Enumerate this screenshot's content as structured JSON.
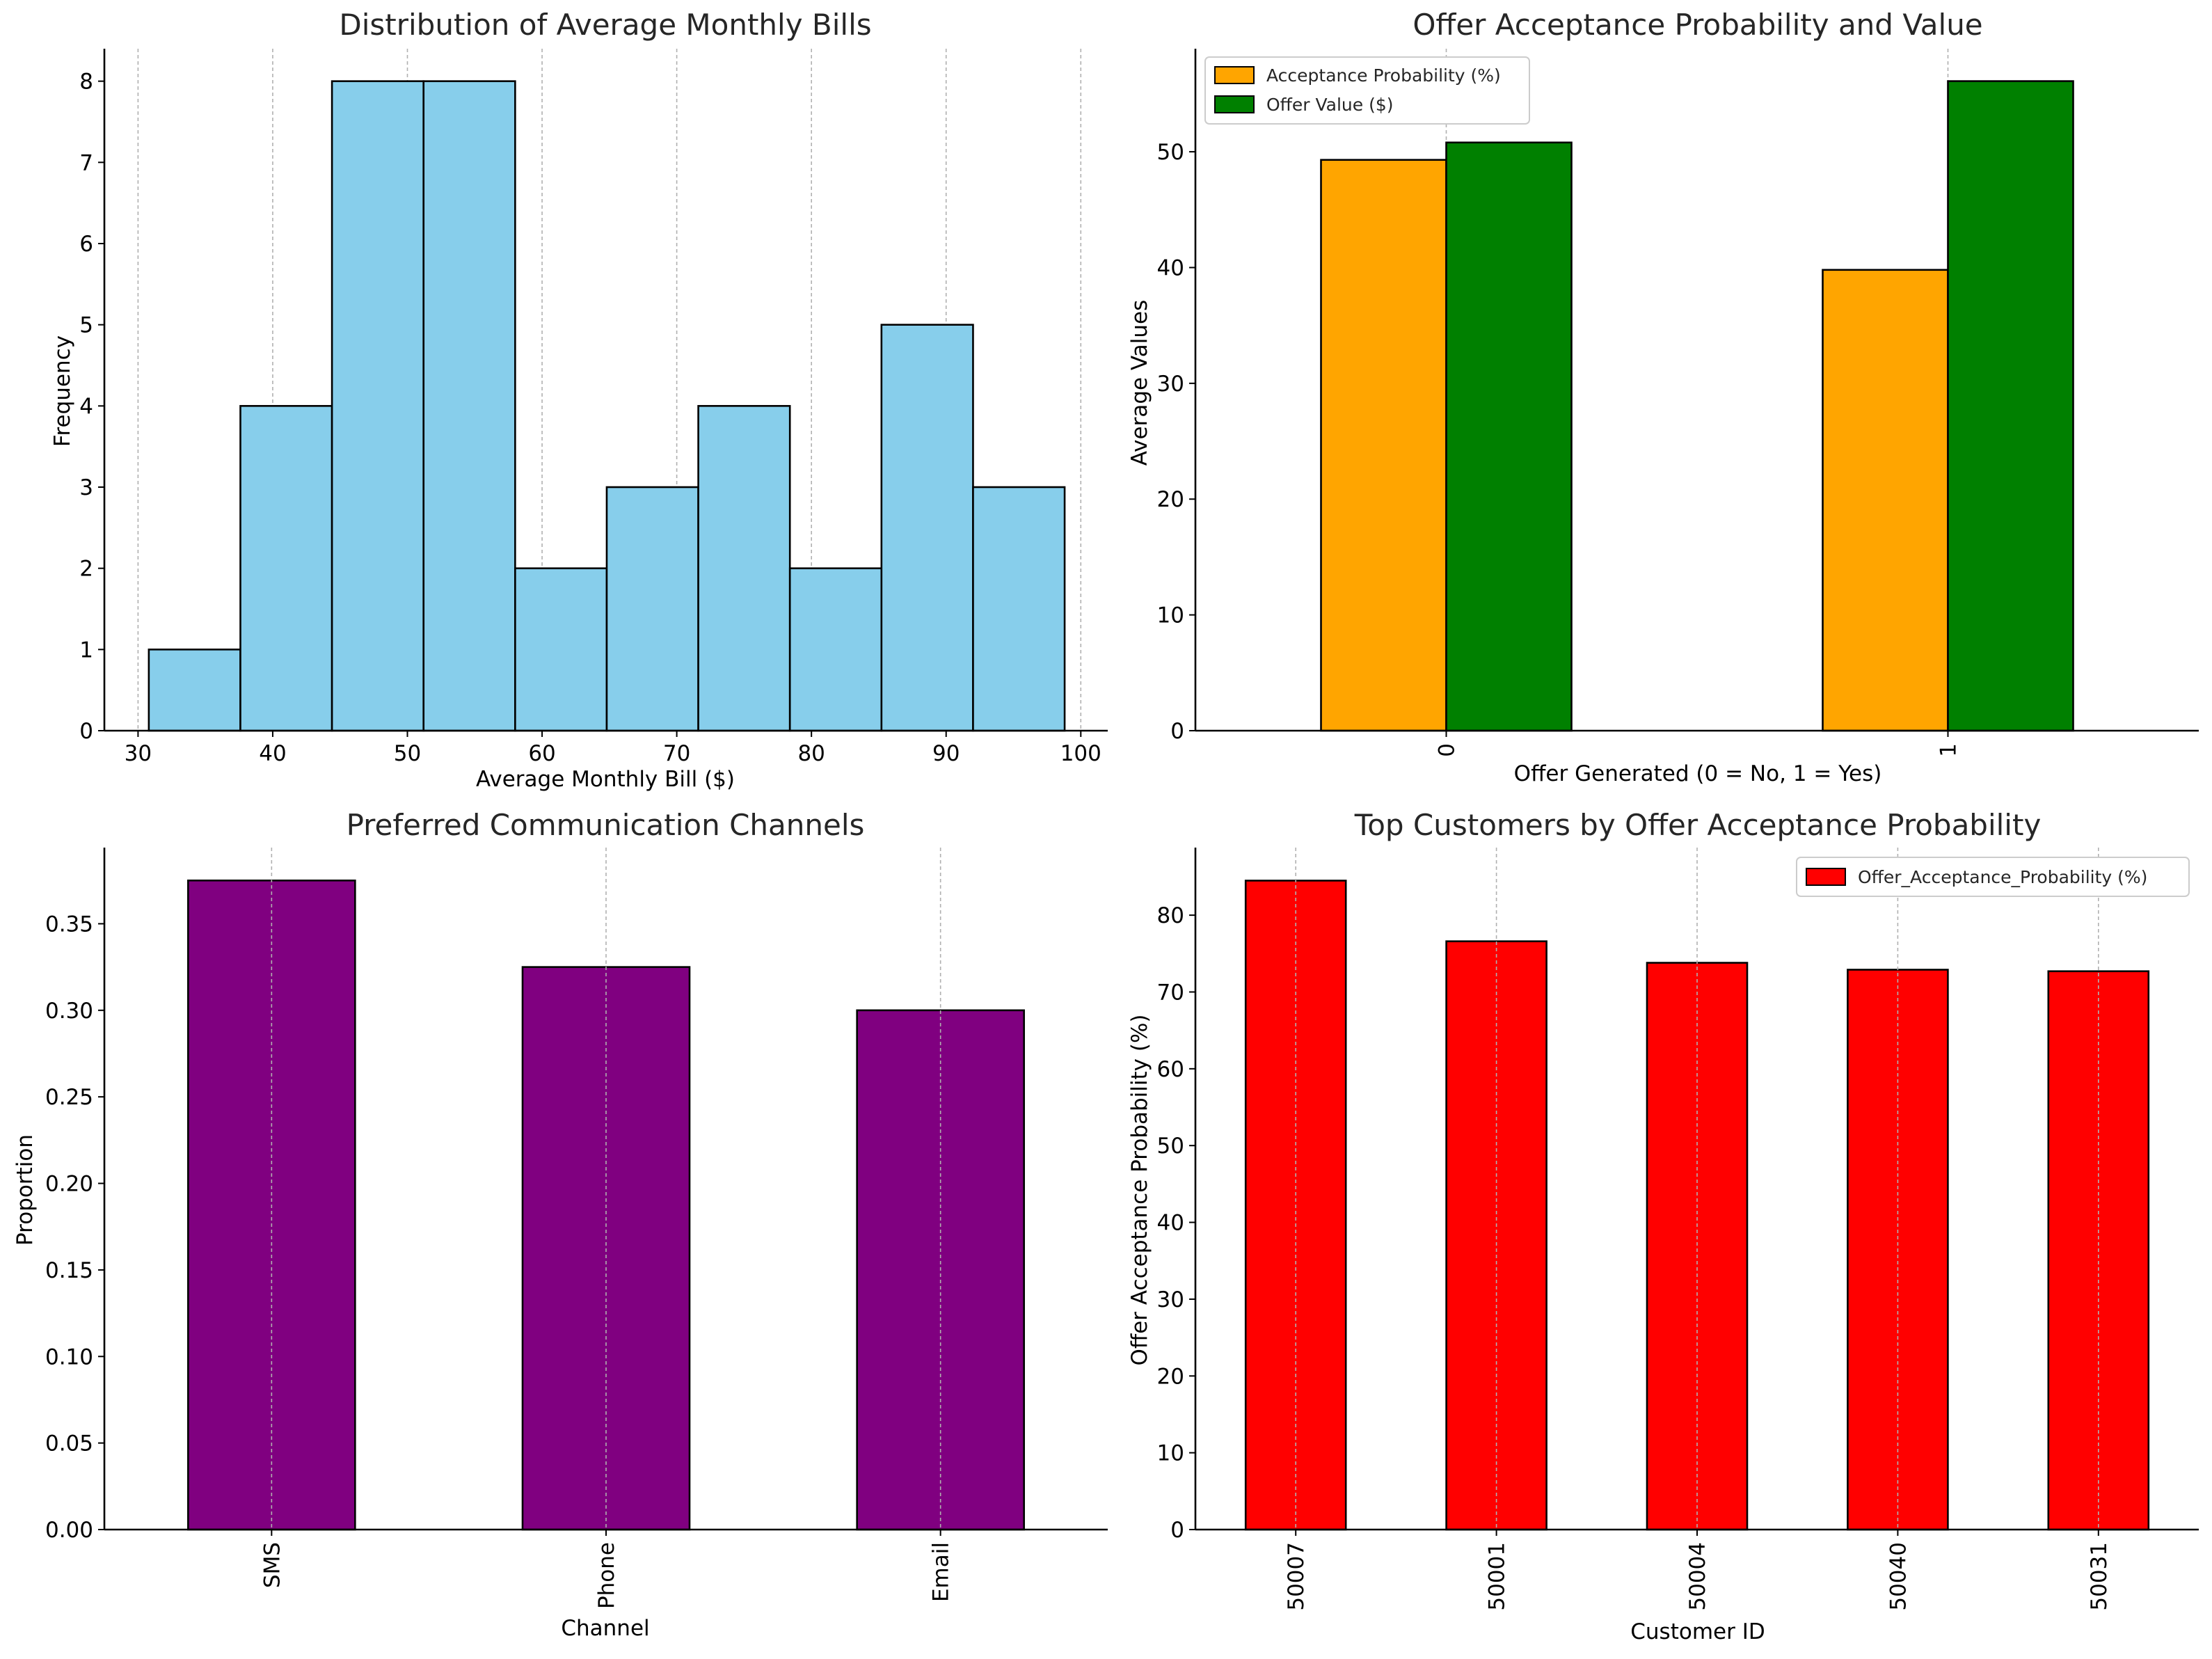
{
  "chart_data": [
    {
      "type": "bar",
      "subtype": "histogram",
      "title": "Distribution of Average Monthly Bills",
      "xlabel": "Average Monthly Bill ($)",
      "ylabel": "Frequency",
      "bin_edges": [
        30.8,
        37.6,
        44.4,
        51.2,
        58.0,
        64.8,
        71.6,
        78.4,
        85.2,
        92.0,
        98.8
      ],
      "values": [
        1,
        4,
        8,
        8,
        2,
        3,
        4,
        2,
        5,
        3
      ],
      "xlim": [
        27.5,
        102
      ],
      "ylim": [
        0,
        8.4
      ],
      "xticks": [
        30,
        40,
        50,
        60,
        70,
        80,
        90,
        100
      ],
      "yticks": [
        0,
        1,
        2,
        3,
        4,
        5,
        6,
        7,
        8
      ],
      "grid": "x",
      "color": "#87ceeb"
    },
    {
      "type": "bar",
      "title": "Offer Acceptance Probability and Value",
      "xlabel": "Offer Generated (0 = No, 1 = Yes)",
      "ylabel": "Average Values",
      "categories": [
        "0",
        "1"
      ],
      "series": [
        {
          "name": "Acceptance Probability (%)",
          "values": [
            49.3,
            39.8
          ],
          "color": "#ffa500"
        },
        {
          "name": "Offer Value ($)",
          "values": [
            50.8,
            56.1
          ],
          "color": "#008000"
        }
      ],
      "ylim": [
        0,
        58.9
      ],
      "yticks": [
        0,
        10,
        20,
        30,
        40,
        50
      ],
      "grid": "x",
      "legend": "top-left"
    },
    {
      "type": "bar",
      "title": "Preferred Communication Channels",
      "xlabel": "Channel",
      "ylabel": "Proportion",
      "categories": [
        "SMS",
        "Phone",
        "Email"
      ],
      "values": [
        0.375,
        0.325,
        0.3
      ],
      "ylim": [
        0,
        0.394
      ],
      "yticks": [
        "0.00",
        "0.05",
        "0.10",
        "0.15",
        "0.20",
        "0.25",
        "0.30",
        "0.35"
      ],
      "grid": "x",
      "color": "#800080"
    },
    {
      "type": "bar",
      "title": "Top Customers by Offer Acceptance Probability",
      "xlabel": "Customer ID",
      "ylabel": "Offer Acceptance Probability (%)",
      "categories": [
        "50007",
        "50001",
        "50004",
        "50040",
        "50031"
      ],
      "series": [
        {
          "name": "Offer_Acceptance_Probability (%)",
          "values": [
            84.5,
            76.6,
            73.8,
            72.9,
            72.7
          ],
          "color": "#ff0000"
        }
      ],
      "ylim": [
        0,
        88.8
      ],
      "yticks": [
        0,
        10,
        20,
        30,
        40,
        50,
        60,
        70,
        80
      ],
      "grid": "x",
      "legend": "top-right"
    }
  ]
}
